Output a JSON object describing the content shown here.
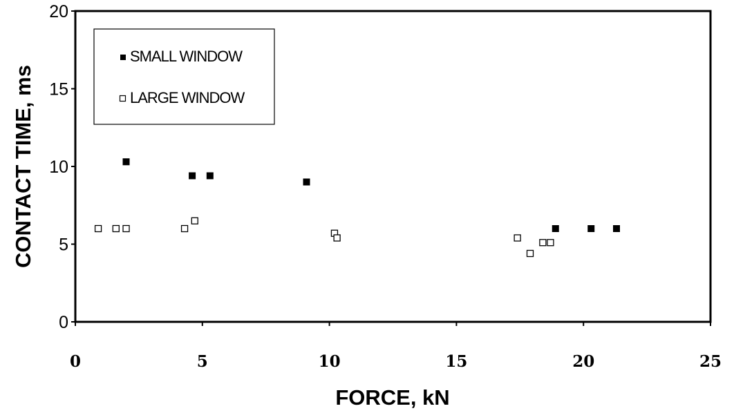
{
  "chart_data": {
    "type": "scatter",
    "xlabel": "FORCE, kN",
    "ylabel": "CONTACT TIME, ms",
    "xlim": [
      0,
      25
    ],
    "ylim": [
      0,
      20
    ],
    "x_ticks": [
      "0",
      "5",
      "10",
      "15",
      "20",
      "25"
    ],
    "y_ticks": [
      "0",
      "5",
      "10",
      "15",
      "20"
    ],
    "grid": false,
    "legend_position": "top-left",
    "series": [
      {
        "name": "SMALL WINDOW",
        "marker": "filled-square",
        "color": "#000000",
        "points": [
          {
            "x": 2.0,
            "y": 10.3
          },
          {
            "x": 4.6,
            "y": 9.4
          },
          {
            "x": 5.3,
            "y": 9.4
          },
          {
            "x": 9.1,
            "y": 9.0
          },
          {
            "x": 18.9,
            "y": 6.0
          },
          {
            "x": 20.3,
            "y": 6.0
          },
          {
            "x": 21.3,
            "y": 6.0
          }
        ]
      },
      {
        "name": "LARGE WINDOW",
        "marker": "open-square",
        "color": "#000000",
        "points": [
          {
            "x": 0.9,
            "y": 6.0
          },
          {
            "x": 1.6,
            "y": 6.0
          },
          {
            "x": 2.0,
            "y": 6.0
          },
          {
            "x": 4.3,
            "y": 6.0
          },
          {
            "x": 4.7,
            "y": 6.5
          },
          {
            "x": 10.2,
            "y": 5.7
          },
          {
            "x": 10.3,
            "y": 5.4
          },
          {
            "x": 17.4,
            "y": 5.4
          },
          {
            "x": 17.9,
            "y": 4.4
          },
          {
            "x": 18.4,
            "y": 5.1
          },
          {
            "x": 18.7,
            "y": 5.1
          }
        ]
      }
    ]
  }
}
